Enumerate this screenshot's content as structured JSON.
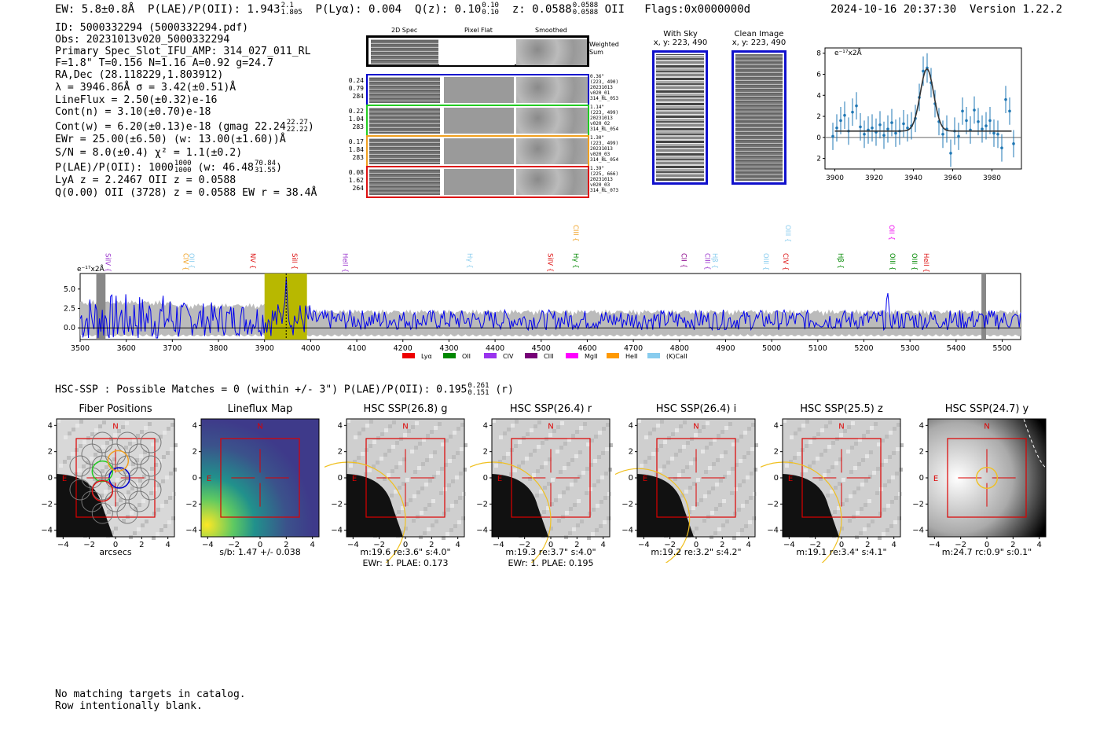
{
  "header": {
    "ew": "EW: 5.8±0.8Å",
    "plae_label": "P(LAE)/P(OII): 1.943",
    "plae_up": "2.1",
    "plae_lo": "1.805",
    "plya": "P(Lyα): 0.004",
    "q_label": "Q(z): 0.10",
    "q_up": "0.10",
    "q_lo": "0.10",
    "z_label": "z: 0.0588",
    "z_up": "0.0588",
    "z_lo": "0.0588",
    "z_line": "OII",
    "flags": "Flags:0x0000000d",
    "datetime": "2024-10-16 20:37:30",
    "version": "Version 1.22.2"
  },
  "info": {
    "id": "ID: 5000332294 (5000332294.pdf)",
    "obs": "Obs: 20231013v020_5000332294",
    "primary": "Primary Spec_Slot_IFU_AMP: 314_027_011_RL",
    "fibers": "F=1.8\"  T=0.156  N=1.16  A=0.92  g=24.7",
    "radec": "RA,Dec (28.118229,1.803912)",
    "lambda": "λ = 3946.86Å  σ = 3.42(±0.51)Å",
    "lineflux": "LineFlux = 2.50(±0.32)e-16",
    "contn": "Cont(n) = 3.10(±0.70)e-18",
    "contw": "Cont(w) = 6.20(±0.13)e-18 (gmag 22.24",
    "contw_up": "22.27",
    "contw_lo": "22.22",
    "contw_end": ")",
    "ewr": "EWr = 25.00(±6.50) (w: 13.00(±1.60))Å",
    "sn": "S/N = 8.0(±0.4)  χ² = 1.1(±0.2)",
    "plae2": "P(LAE)/P(OII): 1000",
    "plae2_up": "1000",
    "plae2_lo": "1000",
    "plae2_w": "(w: 46.48",
    "plae2_w_up": "70.84",
    "plae2_w_lo": "31.55",
    "plae2_end": ")",
    "lya": "LyA z = 2.2467  OII z = 0.0588",
    "q": "Q(0.00) OII (3728) z = 0.0588  EW r = 38.4Å"
  },
  "cutouts": {
    "col_2d": "2D Spec",
    "col_flat": "Pixel Flat",
    "col_smooth": "Smoothed",
    "weighted": "Weighted\nSum",
    "rows": [
      {
        "nums": "0.24\n0.79\n284",
        "stamp": "0.36\"\n(223, 490)\n20231013\nv020_01\n314_RL_053",
        "color": "#0000cc"
      },
      {
        "nums": "0.22\n1.04\n283",
        "stamp": "1.14\"\n(223, 499)\n20231013\nv020_02\n314_RL_054",
        "color": "#22cc22"
      },
      {
        "nums": "0.17\n1.84\n283",
        "stamp": "1.30\"\n(223, 499)\n20231013\nv020_03\n314_RL_054",
        "color": "#f0a020"
      },
      {
        "nums": "0.08\n1.62\n264",
        "stamp": "1.39\"\n(225, 666)\n20231013\nv020_03\n314_RL_073",
        "color": "#dd1111"
      }
    ]
  },
  "sky": {
    "with_title": "With Sky",
    "with_coord": "x, y: 223, 490",
    "clean_title": "Clean Image",
    "clean_coord": "x, y: 223, 490"
  },
  "zoom_chart": {
    "type": "scatter",
    "ylabel_unit": "e⁻¹⁷x2Å",
    "xlim": [
      3895,
      3995
    ],
    "ylim": [
      -3,
      8.5
    ],
    "xticks": [
      3900,
      3920,
      3940,
      3960,
      3980
    ],
    "yticks": [
      -2,
      0,
      2,
      4,
      6,
      8
    ],
    "x": [
      3899,
      3901,
      3903,
      3905,
      3907,
      3909,
      3911,
      3913,
      3915,
      3917,
      3919,
      3921,
      3923,
      3925,
      3927,
      3929,
      3931,
      3933,
      3935,
      3937,
      3939,
      3941,
      3943,
      3945,
      3947,
      3949,
      3951,
      3953,
      3955,
      3957,
      3959,
      3961,
      3963,
      3965,
      3967,
      3969,
      3971,
      3973,
      3975,
      3977,
      3979,
      3981,
      3983,
      3985,
      3987,
      3989,
      3991
    ],
    "y": [
      0.1,
      0.9,
      1.6,
      2.1,
      0.6,
      2.4,
      3.0,
      1.0,
      0.3,
      0.7,
      0.9,
      0.5,
      1.2,
      0.2,
      0.8,
      1.4,
      0.4,
      0.6,
      1.3,
      0.9,
      1.1,
      1.8,
      3.8,
      6.3,
      6.6,
      5.2,
      3.2,
      1.5,
      0.3,
      0.8,
      -1.5,
      0.6,
      0.1,
      2.5,
      1.6,
      0.7,
      2.6,
      1.5,
      0.8,
      1.1,
      1.6,
      0.4,
      0.3,
      -1.0,
      3.6,
      2.5,
      -0.6
    ],
    "err": [
      1.3,
      1.3,
      1.3,
      1.3,
      1.3,
      1.3,
      1.3,
      1.3,
      1.3,
      1.3,
      1.3,
      1.3,
      1.3,
      1.3,
      1.3,
      1.3,
      1.3,
      1.3,
      1.3,
      1.3,
      1.3,
      1.3,
      1.3,
      1.4,
      1.4,
      1.4,
      1.3,
      1.3,
      1.3,
      1.3,
      1.3,
      1.3,
      1.3,
      1.3,
      1.3,
      1.3,
      1.3,
      1.3,
      1.3,
      1.3,
      1.3,
      1.3,
      1.3,
      1.3,
      1.3,
      1.3,
      1.3
    ],
    "fit": {
      "continuum": 0.6,
      "center": 3946.9,
      "sigma": 3.42,
      "amplitude": 5.9
    }
  },
  "full_chart": {
    "type": "line",
    "ylabel_unit": "e⁻¹⁷x2Å",
    "xlim": [
      3500,
      5540
    ],
    "ylim": [
      -1.5,
      7.0
    ],
    "xticks": [
      3500,
      3600,
      3700,
      3800,
      3900,
      4000,
      4100,
      4200,
      4300,
      4400,
      4500,
      4600,
      4700,
      4800,
      4900,
      5000,
      5100,
      5200,
      5300,
      5400,
      5500
    ],
    "yticks": [
      0.0,
      2.5,
      5.0
    ],
    "highlight": [
      3900,
      3992
    ],
    "gray_bands": [
      [
        3535,
        3555
      ],
      [
        5455,
        5465
      ]
    ],
    "peak_x": 3946.9,
    "lines": [
      {
        "name": "SiIV",
        "x": 3555,
        "color": "#9933cc",
        "row": 3
      },
      {
        "name": "CIV",
        "x": 3724,
        "color": "#f0a020",
        "row": 3
      },
      {
        "name": "OII",
        "x": 3737,
        "color": "#88ccee",
        "row": 3
      },
      {
        "name": "NV",
        "x": 3870,
        "color": "#dd1111",
        "row": 3
      },
      {
        "name": "SiII",
        "x": 3960,
        "color": "#dd1111",
        "row": 3
      },
      {
        "name": "HeII",
        "x": 4070,
        "color": "#9933cc",
        "row": 3
      },
      {
        "name": "Hγ",
        "x": 4340,
        "color": "#88ccee",
        "row": 3
      },
      {
        "name": "SiIV",
        "x": 4515,
        "color": "#dd1111",
        "row": 3
      },
      {
        "name": "Hγ",
        "x": 4570,
        "color": "#008800",
        "row": 3
      },
      {
        "name": "CIII",
        "x": 4570,
        "color": "#f0a020",
        "row": 1
      },
      {
        "name": "CII",
        "x": 4805,
        "color": "#880088",
        "row": 3
      },
      {
        "name": "CIII",
        "x": 4856,
        "color": "#9933cc",
        "row": 3
      },
      {
        "name": "Hβ",
        "x": 4872,
        "color": "#88ccee",
        "row": 3
      },
      {
        "name": "OIII",
        "x": 4983,
        "color": "#88ccee",
        "row": 3
      },
      {
        "name": "CIV",
        "x": 5025,
        "color": "#dd1111",
        "row": 3
      },
      {
        "name": "OIII",
        "x": 5030,
        "color": "#88ccee",
        "row": 1
      },
      {
        "name": "Hβ",
        "x": 5145,
        "color": "#008800",
        "row": 3
      },
      {
        "name": "OIII",
        "x": 5257,
        "color": "#008800",
        "row": 3
      },
      {
        "name": "OII",
        "x": 5255,
        "color": "#ee00ee",
        "row": 1
      },
      {
        "name": "OIII",
        "x": 5305,
        "color": "#008800",
        "row": 3
      },
      {
        "name": "HeII",
        "x": 5330,
        "color": "#dd1111",
        "row": 3
      }
    ],
    "legend": [
      {
        "name": "Lyα",
        "color": "#ee0000"
      },
      {
        "name": "OII",
        "color": "#008800"
      },
      {
        "name": "CIV",
        "color": "#9933ee"
      },
      {
        "name": "CIII",
        "color": "#770077"
      },
      {
        "name": "MgII",
        "color": "#ff00ff"
      },
      {
        "name": "HeII",
        "color": "#ff9900"
      },
      {
        "name": "(K)CaII",
        "color": "#88ccee"
      }
    ]
  },
  "hsc": {
    "label": "HSC-SSP : Possible Matches = 0 (within +/- 3\")  P(LAE)/P(OII): 0.195",
    "up": "0.261",
    "lo": "0.151",
    "band": "(r)"
  },
  "panels": [
    {
      "title": "Fiber Positions",
      "cap1": "arcsecs",
      "cap2": ""
    },
    {
      "title": "Lineflux Map",
      "cap1": "s/b: 1.47 +/- 0.038",
      "cap2": ""
    },
    {
      "title": "HSC SSP(26.8) g",
      "cap1": "m:19.6  re:3.6\"  s:4.0\"",
      "cap2": "EWr: 1. PLAE: 0.173"
    },
    {
      "title": "HSC SSP(26.4) r",
      "cap1": "m:19.3  re:3.7\"  s:4.0\"",
      "cap2": "EWr: 1. PLAE: 0.195"
    },
    {
      "title": "HSC SSP(26.4) i",
      "cap1": "m:19.2  re:3.2\"  s:4.2\"",
      "cap2": ""
    },
    {
      "title": "HSC SSP(25.5) z",
      "cap1": "m:19.1  re:3.4\"  s:4.1\"",
      "cap2": ""
    },
    {
      "title": "HSC SSP(24.7) y",
      "cap1": "m:24.7  rc:0.9\"  s:0.1\"",
      "cap2": ""
    }
  ],
  "panel_axes": {
    "ticks": [
      -4,
      -2,
      0,
      2,
      4
    ],
    "tick_labels": [
      "−4",
      "−2",
      "0",
      "2",
      "4"
    ],
    "north": "N",
    "east": "E"
  },
  "footer": {
    "line1": "No matching targets in catalog.",
    "line2": "Row intentionally blank."
  }
}
